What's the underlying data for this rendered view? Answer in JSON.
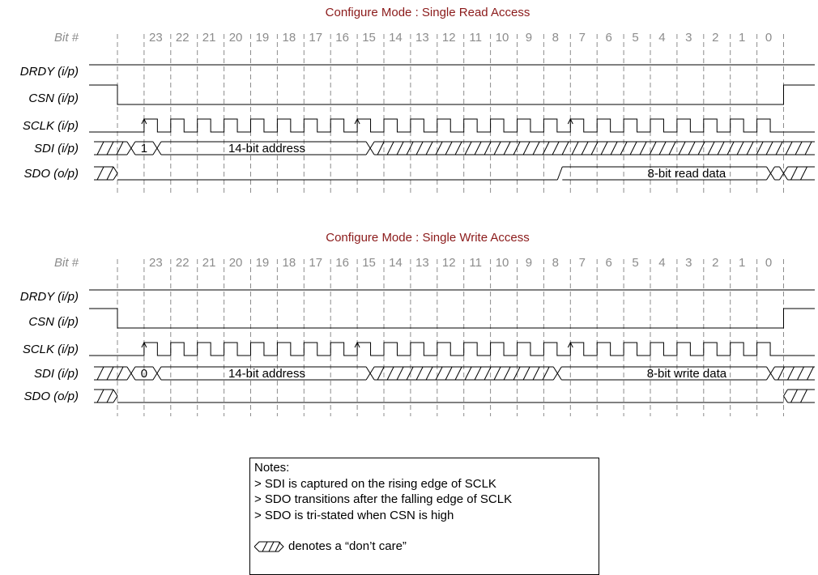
{
  "diagrams": [
    {
      "title": "Configure Mode : Single Read Access",
      "bit_label": "Bit #",
      "bits": [
        "23",
        "22",
        "21",
        "20",
        "19",
        "18",
        "17",
        "16",
        "15",
        "14",
        "13",
        "12",
        "11",
        "10",
        "9",
        "8",
        "7",
        "6",
        "5",
        "4",
        "3",
        "2",
        "1",
        "0"
      ],
      "signals": [
        {
          "label": "DRDY (i/p)",
          "kind": "high"
        },
        {
          "label": "CSN (i/p)",
          "kind": "csn"
        },
        {
          "label": "SCLK (i/p)",
          "kind": "sclk"
        },
        {
          "label": "SDI (i/p)",
          "kind": "sdi",
          "rw_bit": "1",
          "address": "14-bit address",
          "data": ""
        },
        {
          "label": "SDO (o/p)",
          "kind": "sdo",
          "data": "8-bit read data"
        }
      ]
    },
    {
      "title": "Configure Mode : Single Write Access",
      "bit_label": "Bit #",
      "bits": [
        "23",
        "22",
        "21",
        "20",
        "19",
        "18",
        "17",
        "16",
        "15",
        "14",
        "13",
        "12",
        "11",
        "10",
        "9",
        "8",
        "7",
        "6",
        "5",
        "4",
        "3",
        "2",
        "1",
        "0"
      ],
      "signals": [
        {
          "label": "DRDY (i/p)",
          "kind": "high"
        },
        {
          "label": "CSN (i/p)",
          "kind": "csn"
        },
        {
          "label": "SCLK (i/p)",
          "kind": "sclk"
        },
        {
          "label": "SDI (i/p)",
          "kind": "sdi",
          "rw_bit": "0",
          "address": "14-bit address",
          "data": "8-bit write data"
        },
        {
          "label": "SDO (o/p)",
          "kind": "sdo",
          "data": ""
        }
      ]
    }
  ],
  "notes": {
    "heading": "Notes:",
    "lines": [
      "> SDI is captured on the rising edge of SCLK",
      "> SDO transitions after the falling edge of SCLK",
      "> SDO is tri-stated when CSN is high"
    ],
    "legend_text": "denotes a “don’t care”",
    "legend_icon": "dont-care-icon"
  },
  "colors": {
    "title": "#8b1a1a",
    "bit_numbers": "#8c8c8c",
    "signal": "#000000",
    "dashed_guides": "#8c8c8c"
  }
}
